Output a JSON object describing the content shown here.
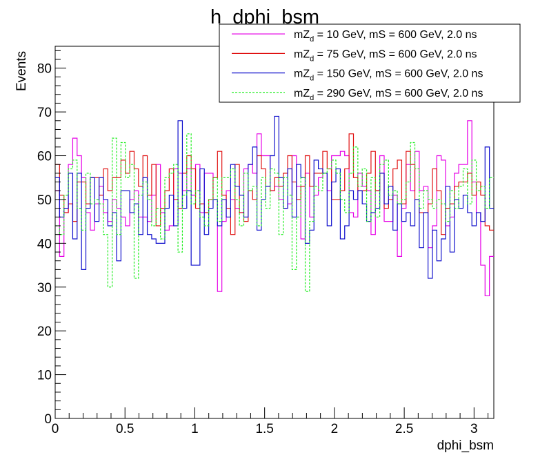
{
  "chart_data": {
    "type": "line",
    "title": "h_dphi_bsm",
    "xlabel": "dphi_bsm",
    "ylabel": "Events",
    "xlim": [
      0,
      3.1416
    ],
    "ylim": [
      0,
      85
    ],
    "x_ticks": [
      "0",
      "0.5",
      "1",
      "1.5",
      "2",
      "2.5",
      "3"
    ],
    "y_ticks": [
      "0",
      "10",
      "20",
      "30",
      "40",
      "50",
      "60",
      "70",
      "80"
    ],
    "bins": 100,
    "grid": false,
    "legend_position": "top-right",
    "series": [
      {
        "name": "mZd = 10 GeV, mS = 600 GeV, 2.0 ns",
        "legend_main": "mZ",
        "legend_sub": "d",
        "legend_rest": " = 10 GeV, mS = 600 GeV, 2.0 ns",
        "color": "#e600e6",
        "dashed": false,
        "values": [
          52,
          37,
          47,
          58,
          64,
          60,
          55,
          47,
          43,
          49,
          53,
          47,
          45,
          50,
          48,
          46,
          44,
          50,
          52,
          46,
          46,
          45,
          51,
          58,
          47,
          43,
          44,
          57,
          56,
          52,
          57,
          51,
          58,
          47,
          56,
          56,
          50,
          29,
          45,
          52,
          50,
          48,
          47,
          57,
          58,
          56,
          65,
          60,
          60,
          52,
          53,
          50,
          48,
          49,
          60,
          53,
          41,
          56,
          46,
          51,
          55,
          56,
          52,
          60,
          60,
          61,
          60,
          47,
          46,
          56,
          53,
          52,
          42,
          52,
          60,
          45,
          45,
          51,
          37,
          48,
          58,
          52,
          61,
          52,
          53,
          39,
          44,
          60,
          59,
          44,
          46,
          56,
          58,
          58,
          68,
          54,
          47,
          35,
          28,
          37
        ]
      },
      {
        "name": "mZd = 75 GeV, mS = 600 GeV, 2.0 ns",
        "legend_main": "mZ",
        "legend_sub": "d",
        "legend_rest": " = 75 GeV, mS = 600 GeV, 2.0 ns",
        "color": "#e01010",
        "dashed": false,
        "values": [
          58,
          51,
          47,
          49,
          45,
          54,
          54,
          49,
          55,
          55,
          51,
          57,
          52,
          55,
          55,
          59,
          56,
          61,
          57,
          53,
          60,
          51,
          58,
          44,
          48,
          52,
          57,
          50,
          48,
          56,
          60,
          57,
          48,
          49,
          47,
          50,
          55,
          61,
          51,
          48,
          42,
          58,
          47,
          45,
          52,
          50,
          60,
          57,
          53,
          52,
          55,
          53,
          56,
          60,
          54,
          50,
          53,
          60,
          53,
          56,
          56,
          61,
          57,
          50,
          50,
          52,
          57,
          65,
          55,
          52,
          52,
          56,
          61,
          52,
          56,
          48,
          50,
          57,
          59,
          49,
          61,
          58,
          50,
          47,
          47,
          49,
          57,
          52,
          42,
          48,
          49,
          53,
          54,
          54,
          56,
          51,
          54,
          51,
          44,
          43
        ]
      },
      {
        "name": "mZd = 150 GeV, mS = 600 GeV, 2.0 ns",
        "legend_main": "mZ",
        "legend_sub": "d",
        "legend_rest": " = 150 GeV, mS = 600 GeV, 2.0 ns",
        "color": "#1010cc",
        "dashed": false,
        "values": [
          55,
          46,
          48,
          56,
          41,
          56,
          34,
          48,
          55,
          45,
          55,
          50,
          44,
          47,
          36,
          52,
          52,
          47,
          49,
          42,
          55,
          42,
          41,
          40,
          40,
          48,
          51,
          44,
          68,
          48,
          52,
          35,
          35,
          57,
          42,
          48,
          50,
          44,
          50,
          46,
          58,
          53,
          51,
          46,
          58,
          62,
          43,
          50,
          53,
          60,
          69,
          55,
          48,
          57,
          46,
          58,
          55,
          40,
          43,
          59,
          57,
          56,
          44,
          54,
          57,
          41,
          44,
          52,
          50,
          52,
          49,
          45,
          47,
          48,
          56,
          49,
          53,
          43,
          49,
          45,
          47,
          44,
          50,
          39,
          47,
          32,
          43,
          36,
          41,
          53,
          38,
          50,
          48,
          51,
          47,
          44,
          47,
          45,
          62,
          48
        ]
      },
      {
        "name": "mZd = 290 GeV, mS = 600 GeV, 2.0 ns",
        "legend_main": "mZ",
        "legend_sub": "d",
        "legend_rest": " = 290 GeV, mS = 600 GeV, 2.0 ns",
        "color": "#22ee22",
        "dashed": true,
        "values": [
          44,
          42,
          51,
          57,
          59,
          48,
          43,
          56,
          49,
          50,
          49,
          42,
          30,
          64,
          42,
          63,
          55,
          58,
          32,
          51,
          54,
          50,
          44,
          48,
          41,
          55,
          56,
          58,
          38,
          51,
          65,
          49,
          52,
          46,
          44,
          50,
          55,
          45,
          55,
          55,
          57,
          50,
          44,
          56,
          52,
          53,
          44,
          55,
          48,
          57,
          56,
          42,
          55,
          51,
          34,
          46,
          55,
          29,
          45,
          53,
          52,
          56,
          57,
          59,
          56,
          50,
          47,
          56,
          62,
          53,
          57,
          45,
          55,
          46,
          58,
          59,
          51,
          52,
          49,
          50,
          54,
          63,
          57,
          48,
          52,
          50,
          48,
          50,
          49,
          45,
          52,
          48,
          53,
          57,
          49,
          59,
          52,
          53,
          48,
          55
        ]
      }
    ]
  }
}
